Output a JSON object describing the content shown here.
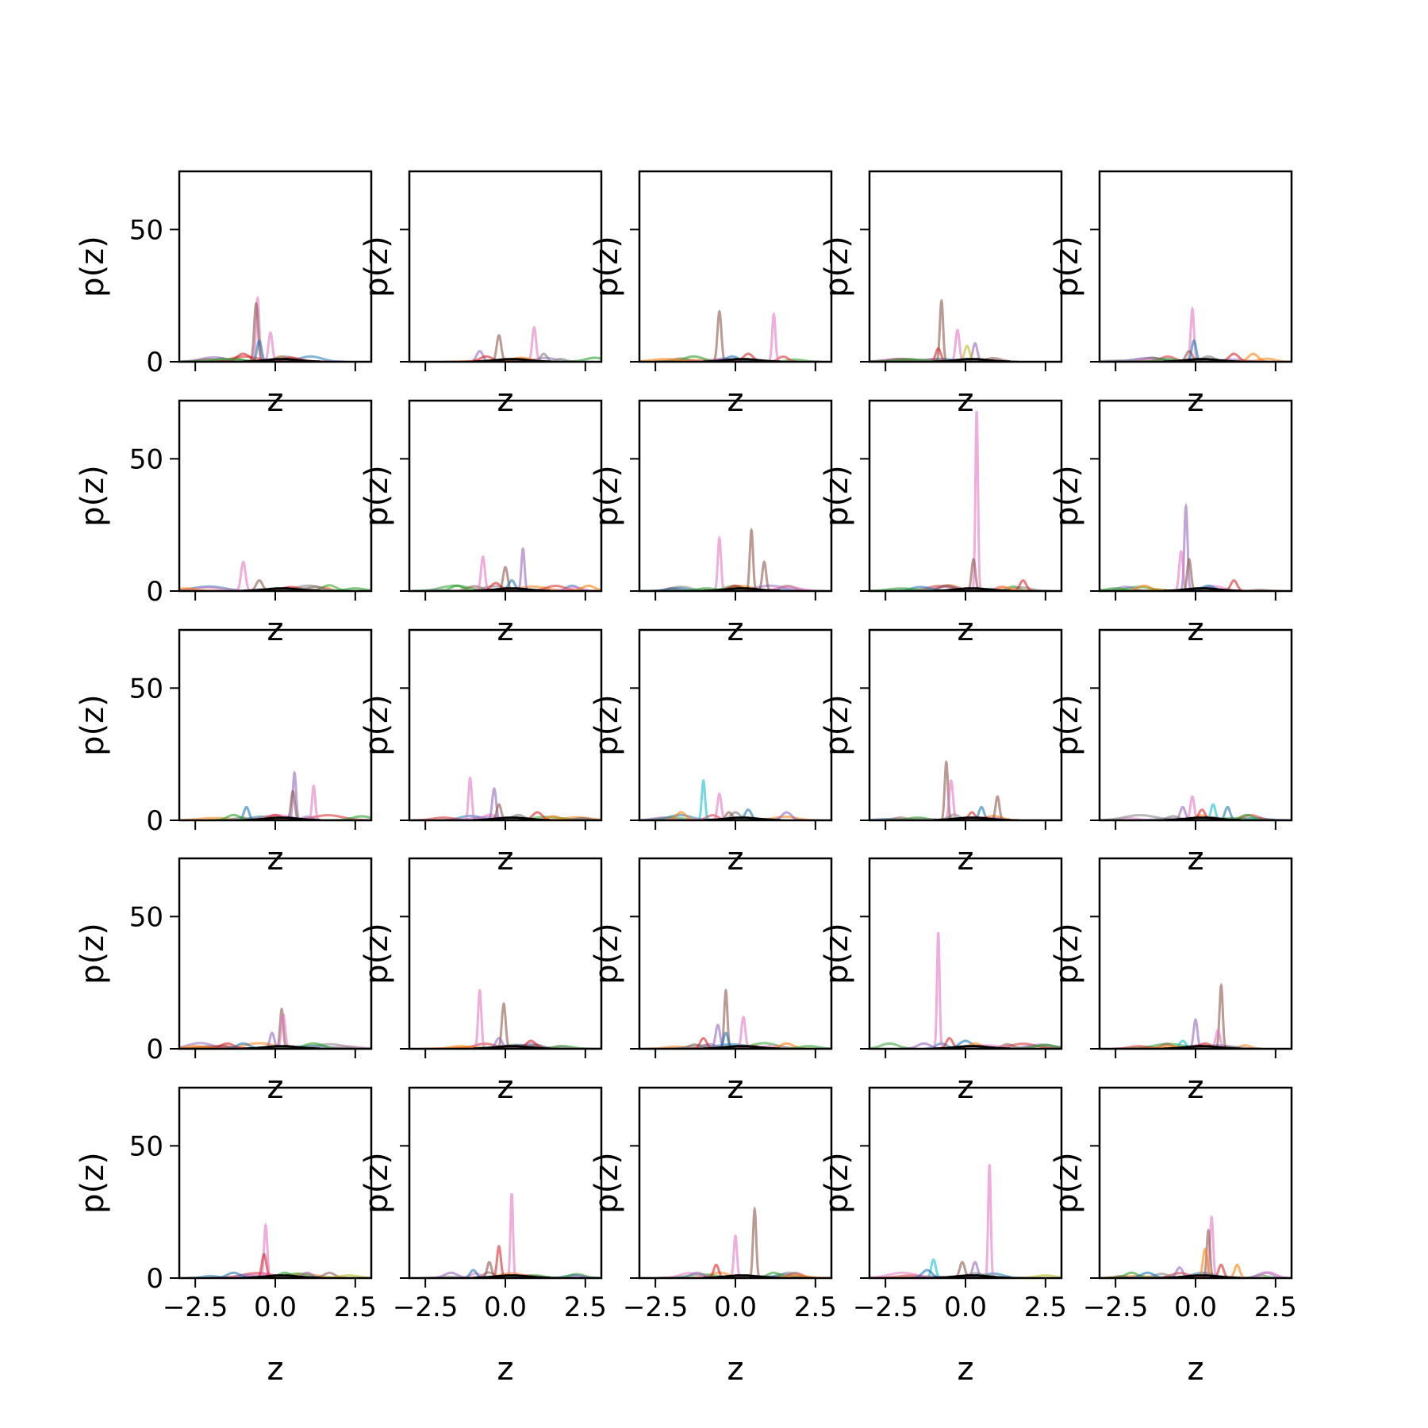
{
  "chart_data": {
    "type": "line",
    "layout": {
      "rows": 5,
      "cols": 5
    },
    "xlabel": "z",
    "ylabel": "p(z)",
    "xlim": [
      -3.0,
      3.0
    ],
    "ylim": [
      0,
      72
    ],
    "xticks": [
      -2.5,
      0.0,
      2.5
    ],
    "xtick_labels": [
      "−2.5",
      "0.0",
      "2.5"
    ],
    "yticks": [
      0,
      50
    ],
    "ytick_labels": [
      "0",
      "50"
    ],
    "grid": false,
    "legend": "none",
    "palette": [
      "#1f77b4",
      "#ff7f0e",
      "#2ca02c",
      "#d62728",
      "#9467bd",
      "#8c564b",
      "#e377c2",
      "#7f7f7f",
      "#bcbd22",
      "#17becf"
    ],
    "panels": [
      {
        "peaks": [
          {
            "c": 6,
            "x": -0.55,
            "h": 24,
            "w": 0.05
          },
          {
            "c": 5,
            "x": -0.6,
            "h": 22,
            "w": 0.06
          },
          {
            "c": 6,
            "x": -0.15,
            "h": 11,
            "w": 0.06
          },
          {
            "c": 0,
            "x": -0.5,
            "h": 8,
            "w": 0.07
          },
          {
            "c": 3,
            "x": -1.0,
            "h": 3,
            "w": 0.2
          },
          {
            "c": 2,
            "x": -1.5,
            "h": 1,
            "w": 0.5
          },
          {
            "c": 7,
            "x": 0.3,
            "h": 2,
            "w": 0.3
          },
          {
            "c": 3,
            "x": 0.5,
            "h": 1.5,
            "w": 0.3
          }
        ]
      },
      {
        "peaks": [
          {
            "c": 6,
            "x": 0.9,
            "h": 13,
            "w": 0.06
          },
          {
            "c": 5,
            "x": -0.2,
            "h": 10,
            "w": 0.07
          },
          {
            "c": 4,
            "x": -0.8,
            "h": 4,
            "w": 0.1
          },
          {
            "c": 7,
            "x": 1.2,
            "h": 3,
            "w": 0.1
          },
          {
            "c": 3,
            "x": -0.6,
            "h": 2,
            "w": 0.2
          },
          {
            "c": 2,
            "x": 2.8,
            "h": 1.5,
            "w": 0.3
          },
          {
            "c": 1,
            "x": 0.5,
            "h": 1.5,
            "w": 0.3
          }
        ]
      },
      {
        "peaks": [
          {
            "c": 5,
            "x": -0.5,
            "h": 19,
            "w": 0.06
          },
          {
            "c": 6,
            "x": 1.2,
            "h": 18,
            "w": 0.05
          },
          {
            "c": 3,
            "x": 0.4,
            "h": 3,
            "w": 0.15
          },
          {
            "c": 2,
            "x": -1.3,
            "h": 2,
            "w": 0.3
          },
          {
            "c": 0,
            "x": -0.1,
            "h": 2,
            "w": 0.2
          },
          {
            "c": 1,
            "x": -2.2,
            "h": 1,
            "w": 0.4
          }
        ]
      },
      {
        "peaks": [
          {
            "c": 5,
            "x": -0.75,
            "h": 23,
            "w": 0.05
          },
          {
            "c": 6,
            "x": -0.25,
            "h": 12,
            "w": 0.06
          },
          {
            "c": 4,
            "x": 0.3,
            "h": 7,
            "w": 0.07
          },
          {
            "c": 3,
            "x": -0.85,
            "h": 5,
            "w": 0.08
          },
          {
            "c": 8,
            "x": 0.05,
            "h": 6,
            "w": 0.08
          },
          {
            "c": 2,
            "x": -1.8,
            "h": 1,
            "w": 0.4
          }
        ]
      },
      {
        "peaks": [
          {
            "c": 6,
            "x": -0.1,
            "h": 20,
            "w": 0.05
          },
          {
            "c": 0,
            "x": -0.05,
            "h": 8,
            "w": 0.07
          },
          {
            "c": 1,
            "x": 1.8,
            "h": 3,
            "w": 0.15
          },
          {
            "c": 3,
            "x": 1.2,
            "h": 3,
            "w": 0.15
          },
          {
            "c": 5,
            "x": -0.2,
            "h": 4,
            "w": 0.1
          },
          {
            "c": 7,
            "x": 0.4,
            "h": 2,
            "w": 0.2
          },
          {
            "c": 2,
            "x": -0.9,
            "h": 1,
            "w": 0.3
          }
        ]
      },
      {
        "peaks": [
          {
            "c": 6,
            "x": -1.0,
            "h": 11,
            "w": 0.07
          },
          {
            "c": 5,
            "x": -0.5,
            "h": 4,
            "w": 0.1
          },
          {
            "c": 1,
            "x": -2.8,
            "h": 1,
            "w": 0.3
          },
          {
            "c": 2,
            "x": 2.5,
            "h": 1,
            "w": 0.3
          },
          {
            "c": 3,
            "x": 0.5,
            "h": 1.5,
            "w": 0.3
          },
          {
            "c": 7,
            "x": 0.9,
            "h": 1,
            "w": 0.3
          }
        ]
      },
      {
        "peaks": [
          {
            "c": 4,
            "x": 0.55,
            "h": 16,
            "w": 0.05
          },
          {
            "c": 6,
            "x": -0.7,
            "h": 13,
            "w": 0.06
          },
          {
            "c": 5,
            "x": 0.0,
            "h": 9,
            "w": 0.07
          },
          {
            "c": 0,
            "x": 0.2,
            "h": 4,
            "w": 0.1
          },
          {
            "c": 2,
            "x": -1.5,
            "h": 2,
            "w": 0.2
          },
          {
            "c": 1,
            "x": 2.6,
            "h": 2,
            "w": 0.2
          },
          {
            "c": 3,
            "x": -0.3,
            "h": 3,
            "w": 0.15
          }
        ]
      },
      {
        "peaks": [
          {
            "c": 5,
            "x": 0.5,
            "h": 23,
            "w": 0.05
          },
          {
            "c": 6,
            "x": -0.5,
            "h": 20,
            "w": 0.05
          },
          {
            "c": 5,
            "x": 0.9,
            "h": 11,
            "w": 0.06
          },
          {
            "c": 3,
            "x": 0.0,
            "h": 2,
            "w": 0.2
          },
          {
            "c": 0,
            "x": -1.8,
            "h": 1,
            "w": 0.3
          },
          {
            "c": 2,
            "x": -0.9,
            "h": 1,
            "w": 0.3
          }
        ]
      },
      {
        "peaks": [
          {
            "c": 6,
            "x": 0.35,
            "h": 68,
            "w": 0.04
          },
          {
            "c": 5,
            "x": 0.25,
            "h": 12,
            "w": 0.06
          },
          {
            "c": 3,
            "x": 1.8,
            "h": 4,
            "w": 0.1
          },
          {
            "c": 0,
            "x": -1.4,
            "h": 1.5,
            "w": 0.3
          },
          {
            "c": 2,
            "x": -2.0,
            "h": 1,
            "w": 0.4
          },
          {
            "c": 1,
            "x": 1.2,
            "h": 1.5,
            "w": 0.2
          }
        ]
      },
      {
        "peaks": [
          {
            "c": 4,
            "x": -0.3,
            "h": 32,
            "w": 0.05
          },
          {
            "c": 6,
            "x": -0.45,
            "h": 15,
            "w": 0.06
          },
          {
            "c": 5,
            "x": -0.2,
            "h": 12,
            "w": 0.06
          },
          {
            "c": 3,
            "x": 1.2,
            "h": 4,
            "w": 0.1
          },
          {
            "c": 1,
            "x": -1.6,
            "h": 2,
            "w": 0.2
          },
          {
            "c": 2,
            "x": -2.5,
            "h": 1,
            "w": 0.3
          },
          {
            "c": 0,
            "x": 0.4,
            "h": 2,
            "w": 0.2
          }
        ]
      },
      {
        "peaks": [
          {
            "c": 4,
            "x": 0.6,
            "h": 18,
            "w": 0.05
          },
          {
            "c": 6,
            "x": 1.2,
            "h": 13,
            "w": 0.05
          },
          {
            "c": 5,
            "x": 0.55,
            "h": 11,
            "w": 0.06
          },
          {
            "c": 0,
            "x": -0.9,
            "h": 5,
            "w": 0.08
          },
          {
            "c": 2,
            "x": -1.3,
            "h": 2,
            "w": 0.2
          },
          {
            "c": 2,
            "x": 2.7,
            "h": 1.5,
            "w": 0.3
          },
          {
            "c": 3,
            "x": 0.0,
            "h": 2,
            "w": 0.2
          }
        ]
      },
      {
        "peaks": [
          {
            "c": 6,
            "x": -1.1,
            "h": 16,
            "w": 0.05
          },
          {
            "c": 4,
            "x": -0.35,
            "h": 12,
            "w": 0.06
          },
          {
            "c": 5,
            "x": -0.2,
            "h": 6,
            "w": 0.07
          },
          {
            "c": 3,
            "x": 1.0,
            "h": 3,
            "w": 0.15
          },
          {
            "c": 1,
            "x": 1.5,
            "h": 1.5,
            "w": 0.2
          },
          {
            "c": 7,
            "x": 0.4,
            "h": 2,
            "w": 0.2
          }
        ]
      },
      {
        "peaks": [
          {
            "c": 9,
            "x": -1.0,
            "h": 15,
            "w": 0.05
          },
          {
            "c": 6,
            "x": -0.5,
            "h": 10,
            "w": 0.06
          },
          {
            "c": 1,
            "x": -1.7,
            "h": 3,
            "w": 0.15
          },
          {
            "c": 4,
            "x": 1.6,
            "h": 3,
            "w": 0.15
          },
          {
            "c": 0,
            "x": 0.4,
            "h": 4,
            "w": 0.1
          },
          {
            "c": 7,
            "x": 0.0,
            "h": 3,
            "w": 0.15
          },
          {
            "c": 5,
            "x": -0.2,
            "h": 3,
            "w": 0.1
          }
        ]
      },
      {
        "peaks": [
          {
            "c": 5,
            "x": -0.6,
            "h": 22,
            "w": 0.05
          },
          {
            "c": 6,
            "x": -0.45,
            "h": 15,
            "w": 0.06
          },
          {
            "c": 5,
            "x": 1.0,
            "h": 9,
            "w": 0.06
          },
          {
            "c": 0,
            "x": 0.5,
            "h": 5,
            "w": 0.08
          },
          {
            "c": 3,
            "x": 0.2,
            "h": 3,
            "w": 0.1
          },
          {
            "c": 2,
            "x": -1.5,
            "h": 1,
            "w": 0.3
          }
        ]
      },
      {
        "peaks": [
          {
            "c": 6,
            "x": -0.1,
            "h": 9,
            "w": 0.06
          },
          {
            "c": 4,
            "x": -0.4,
            "h": 5,
            "w": 0.08
          },
          {
            "c": 9,
            "x": 0.55,
            "h": 6,
            "w": 0.07
          },
          {
            "c": 0,
            "x": 1.0,
            "h": 5,
            "w": 0.08
          },
          {
            "c": 3,
            "x": 0.2,
            "h": 4,
            "w": 0.1
          },
          {
            "c": 2,
            "x": 1.6,
            "h": 2,
            "w": 0.2
          },
          {
            "c": 7,
            "x": -0.7,
            "h": 1.5,
            "w": 0.2
          }
        ]
      },
      {
        "peaks": [
          {
            "c": 5,
            "x": 0.2,
            "h": 15,
            "w": 0.05
          },
          {
            "c": 6,
            "x": 0.25,
            "h": 13,
            "w": 0.06
          },
          {
            "c": 4,
            "x": -0.1,
            "h": 6,
            "w": 0.07
          },
          {
            "c": 2,
            "x": 1.2,
            "h": 2,
            "w": 0.3
          },
          {
            "c": 3,
            "x": -1.5,
            "h": 2,
            "w": 0.2
          },
          {
            "c": 0,
            "x": -1.0,
            "h": 2,
            "w": 0.2
          },
          {
            "c": 1,
            "x": -2.5,
            "h": 1,
            "w": 0.3
          }
        ]
      },
      {
        "peaks": [
          {
            "c": 6,
            "x": -0.8,
            "h": 22,
            "w": 0.05
          },
          {
            "c": 5,
            "x": -0.05,
            "h": 17,
            "w": 0.06
          },
          {
            "c": 3,
            "x": 0.8,
            "h": 3,
            "w": 0.15
          },
          {
            "c": 4,
            "x": -0.2,
            "h": 4,
            "w": 0.1
          },
          {
            "c": 2,
            "x": 1.8,
            "h": 1,
            "w": 0.3
          },
          {
            "c": 1,
            "x": -1.4,
            "h": 1,
            "w": 0.3
          }
        ]
      },
      {
        "peaks": [
          {
            "c": 5,
            "x": -0.3,
            "h": 22,
            "w": 0.05
          },
          {
            "c": 6,
            "x": 0.25,
            "h": 12,
            "w": 0.06
          },
          {
            "c": 4,
            "x": -0.55,
            "h": 9,
            "w": 0.07
          },
          {
            "c": 3,
            "x": -1.0,
            "h": 4,
            "w": 0.1
          },
          {
            "c": 0,
            "x": -0.3,
            "h": 6,
            "w": 0.07
          },
          {
            "c": 1,
            "x": 1.6,
            "h": 2,
            "w": 0.2
          },
          {
            "c": 2,
            "x": 2.3,
            "h": 1,
            "w": 0.3
          }
        ]
      },
      {
        "peaks": [
          {
            "c": 6,
            "x": -0.85,
            "h": 44,
            "w": 0.04
          },
          {
            "c": 3,
            "x": -0.5,
            "h": 4,
            "w": 0.1
          },
          {
            "c": 4,
            "x": -1.3,
            "h": 2,
            "w": 0.2
          },
          {
            "c": 0,
            "x": 0.0,
            "h": 3,
            "w": 0.2
          },
          {
            "c": 1,
            "x": 0.3,
            "h": 2,
            "w": 0.2
          },
          {
            "c": 2,
            "x": 2.5,
            "h": 1.5,
            "w": 0.3
          }
        ]
      },
      {
        "peaks": [
          {
            "c": 5,
            "x": 0.8,
            "h": 24,
            "w": 0.05
          },
          {
            "c": 4,
            "x": 0.0,
            "h": 11,
            "w": 0.06
          },
          {
            "c": 6,
            "x": 0.7,
            "h": 7,
            "w": 0.07
          },
          {
            "c": 9,
            "x": -0.4,
            "h": 3,
            "w": 0.1
          },
          {
            "c": 3,
            "x": 0.3,
            "h": 2,
            "w": 0.2
          },
          {
            "c": 1,
            "x": -0.8,
            "h": 1,
            "w": 0.3
          }
        ]
      },
      {
        "peaks": [
          {
            "c": 6,
            "x": -0.3,
            "h": 20,
            "w": 0.05
          },
          {
            "c": 3,
            "x": -0.35,
            "h": 9,
            "w": 0.07
          },
          {
            "c": 4,
            "x": 1.0,
            "h": 2,
            "w": 0.15
          },
          {
            "c": 0,
            "x": -1.3,
            "h": 2,
            "w": 0.2
          },
          {
            "c": 8,
            "x": 2.3,
            "h": 1,
            "w": 0.3
          },
          {
            "c": 2,
            "x": 0.3,
            "h": 2,
            "w": 0.2
          }
        ]
      },
      {
        "peaks": [
          {
            "c": 6,
            "x": 0.2,
            "h": 32,
            "w": 0.04
          },
          {
            "c": 3,
            "x": -0.2,
            "h": 12,
            "w": 0.06
          },
          {
            "c": 5,
            "x": -0.5,
            "h": 6,
            "w": 0.07
          },
          {
            "c": 0,
            "x": -1.0,
            "h": 3,
            "w": 0.1
          },
          {
            "c": 4,
            "x": -1.7,
            "h": 2,
            "w": 0.2
          },
          {
            "c": 2,
            "x": 0.9,
            "h": 1,
            "w": 0.3
          }
        ]
      },
      {
        "peaks": [
          {
            "c": 5,
            "x": 0.6,
            "h": 26,
            "w": 0.05
          },
          {
            "c": 6,
            "x": 0.0,
            "h": 16,
            "w": 0.05
          },
          {
            "c": 3,
            "x": -0.6,
            "h": 5,
            "w": 0.08
          },
          {
            "c": 2,
            "x": 1.2,
            "h": 2,
            "w": 0.2
          },
          {
            "c": 4,
            "x": -1.2,
            "h": 2,
            "w": 0.2
          },
          {
            "c": 1,
            "x": 1.9,
            "h": 1,
            "w": 0.3
          }
        ]
      },
      {
        "peaks": [
          {
            "c": 6,
            "x": 0.75,
            "h": 43,
            "w": 0.04
          },
          {
            "c": 9,
            "x": -1.0,
            "h": 7,
            "w": 0.07
          },
          {
            "c": 5,
            "x": -0.1,
            "h": 6,
            "w": 0.08
          },
          {
            "c": 4,
            "x": 0.3,
            "h": 6,
            "w": 0.08
          },
          {
            "c": 0,
            "x": -1.2,
            "h": 3,
            "w": 0.15
          },
          {
            "c": 8,
            "x": 2.5,
            "h": 1,
            "w": 0.3
          }
        ]
      },
      {
        "peaks": [
          {
            "c": 6,
            "x": 0.5,
            "h": 23,
            "w": 0.05
          },
          {
            "c": 5,
            "x": 0.4,
            "h": 18,
            "w": 0.05
          },
          {
            "c": 1,
            "x": 0.3,
            "h": 11,
            "w": 0.07
          },
          {
            "c": 1,
            "x": 1.3,
            "h": 5,
            "w": 0.08
          },
          {
            "c": 3,
            "x": 0.8,
            "h": 5,
            "w": 0.08
          },
          {
            "c": 2,
            "x": -2.0,
            "h": 2,
            "w": 0.2
          },
          {
            "c": 4,
            "x": -0.5,
            "h": 4,
            "w": 0.1
          },
          {
            "c": 0,
            "x": -1.5,
            "h": 2,
            "w": 0.2
          }
        ]
      }
    ]
  }
}
